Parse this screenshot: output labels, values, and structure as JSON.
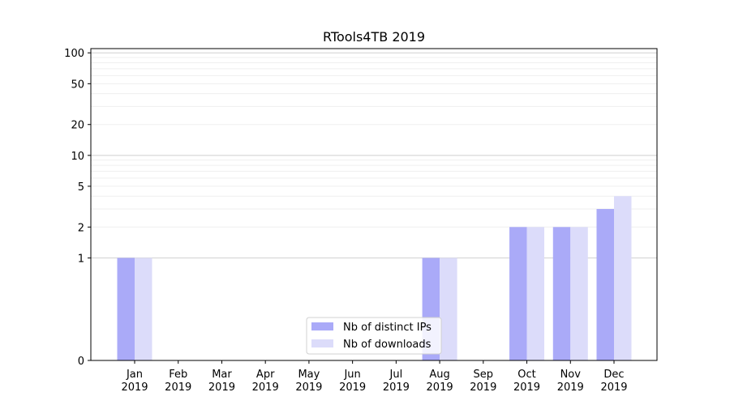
{
  "chart_data": {
    "type": "bar",
    "title": "RTools4TB 2019",
    "xlabel": "",
    "ylabel": "",
    "yscale": "symlog",
    "ylim": [
      0,
      110
    ],
    "yticks": [
      0,
      1,
      2,
      5,
      10,
      20,
      50,
      100
    ],
    "categories": [
      "Jan",
      "Feb",
      "Mar",
      "Apr",
      "May",
      "Jun",
      "Jul",
      "Aug",
      "Sep",
      "Oct",
      "Nov",
      "Dec"
    ],
    "category_year": "2019",
    "series": [
      {
        "name": "Nb of distinct IPs",
        "color": "#aaaaf8",
        "values": [
          1,
          0,
          0,
          0,
          0,
          0,
          0,
          1,
          0,
          2,
          2,
          3
        ]
      },
      {
        "name": "Nb of downloads",
        "color": "#dcdcfa",
        "values": [
          1,
          0,
          0,
          0,
          0,
          0,
          0,
          1,
          0,
          2,
          2,
          4
        ]
      }
    ],
    "grid": true,
    "legend_position": "bottom-center"
  }
}
